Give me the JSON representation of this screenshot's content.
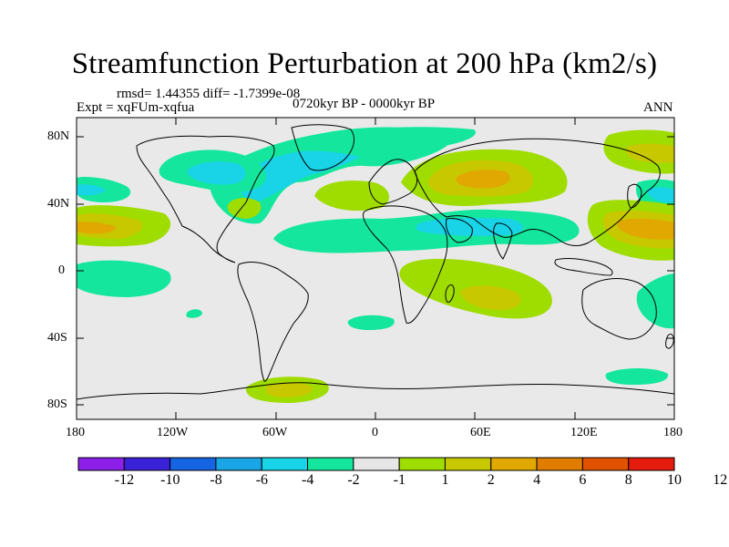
{
  "title": "Streamfunction Perturbation at 200 hPa (km2/s)",
  "stats": "rmsd= 1.44355 diff= -1.7399e-08",
  "experiment": "Expt = xqFUm-xqfua",
  "period": "0720kyr BP - 0000kyr BP",
  "season": "ANN",
  "map": {
    "projection": "cylindrical-equidistant",
    "lon_range": [
      -180,
      180
    ],
    "lat_range": [
      -90,
      90
    ],
    "lat_ticks": [
      "80N",
      "40N",
      "0",
      "40S",
      "80S"
    ],
    "lon_ticks": [
      "180",
      "120W",
      "60W",
      "0",
      "60E",
      "120E",
      "180"
    ],
    "land_color": "#e9e9e9"
  },
  "colorbar": {
    "colors": [
      "#8c1fe8",
      "#3a22d9",
      "#1565e2",
      "#1aa5e6",
      "#19d3e6",
      "#14e79d",
      "#e6e6e6",
      "#9fdc00",
      "#c8c800",
      "#e0a800",
      "#e07d00",
      "#e05200",
      "#e51b0d"
    ],
    "labels": [
      "-12",
      "-10",
      "-8",
      "-6",
      "-4",
      "-2",
      "-1",
      "1",
      "2",
      "4",
      "6",
      "8",
      "10",
      "12"
    ]
  }
}
